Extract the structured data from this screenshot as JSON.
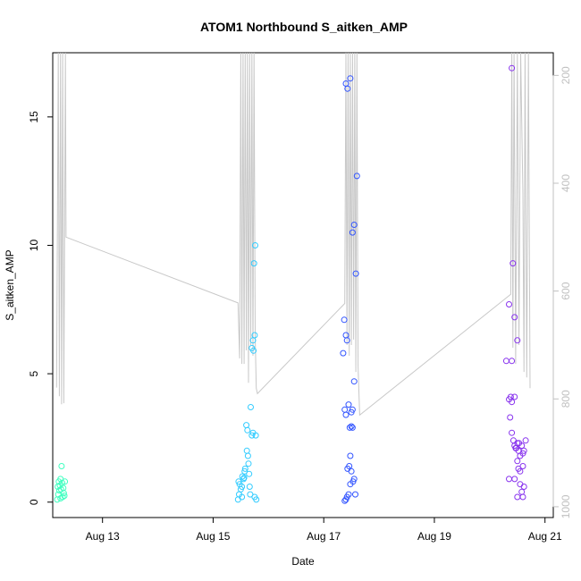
{
  "chart_data": {
    "type": "scatter",
    "title": "ATOM1 Northbound S_aitken_AMP",
    "xlabel": "Date",
    "ylabel": "S_aitken_AMP",
    "xlim": [
      12.1,
      21.15
    ],
    "ylim": [
      -0.6,
      17.5
    ],
    "x_ticks": [
      {
        "value": 13,
        "label": "Aug 13"
      },
      {
        "value": 15,
        "label": "Aug 15"
      },
      {
        "value": 17,
        "label": "Aug 17"
      },
      {
        "value": 19,
        "label": "Aug 19"
      },
      {
        "value": 21,
        "label": "Aug 21"
      }
    ],
    "y_ticks": [
      0,
      5,
      10,
      15
    ],
    "secondary_axis": {
      "position": "right",
      "color": "#c0c0c0",
      "range": [
        158,
        1020
      ],
      "ticks": [
        200,
        400,
        600,
        800,
        1000
      ]
    },
    "grid": false,
    "legend": "none",
    "series": [
      {
        "color": "#40ffc0",
        "points": [
          [
            12.18,
            0.1
          ],
          [
            12.2,
            0.3
          ],
          [
            12.19,
            0.6
          ],
          [
            12.22,
            0.45
          ],
          [
            12.21,
            0.8
          ],
          [
            12.24,
            0.9
          ],
          [
            12.25,
            0.5
          ],
          [
            12.23,
            0.65
          ],
          [
            12.26,
            1.4
          ],
          [
            12.27,
            0.75
          ],
          [
            12.28,
            0.2
          ],
          [
            12.29,
            0.55
          ],
          [
            12.3,
            0.35
          ],
          [
            12.32,
            0.8
          ],
          [
            12.31,
            0.25
          ],
          [
            12.24,
            0.15
          ]
        ]
      },
      {
        "color": "#33ccff",
        "points": [
          [
            15.45,
            0.1
          ],
          [
            15.47,
            0.3
          ],
          [
            15.46,
            0.8
          ],
          [
            15.5,
            0.5
          ],
          [
            15.48,
            0.7
          ],
          [
            15.52,
            0.6
          ],
          [
            15.55,
            0.9
          ],
          [
            15.53,
            1.0
          ],
          [
            15.57,
            1.2
          ],
          [
            15.58,
            1.3
          ],
          [
            15.6,
            3.0
          ],
          [
            15.62,
            2.8
          ],
          [
            15.61,
            2.0
          ],
          [
            15.63,
            1.8
          ],
          [
            15.64,
            1.5
          ],
          [
            15.65,
            1.1
          ],
          [
            15.66,
            0.6
          ],
          [
            15.67,
            0.3
          ],
          [
            15.68,
            3.7
          ],
          [
            15.7,
            2.6
          ],
          [
            15.72,
            2.7
          ],
          [
            15.7,
            6.0
          ],
          [
            15.72,
            6.3
          ],
          [
            15.73,
            5.9
          ],
          [
            15.75,
            6.5
          ],
          [
            15.74,
            9.3
          ],
          [
            15.76,
            10.0
          ],
          [
            15.77,
            2.6
          ],
          [
            15.78,
            0.1
          ],
          [
            15.75,
            0.2
          ],
          [
            15.52,
            0.2
          ],
          [
            15.56,
            0.95
          ]
        ]
      },
      {
        "color": "#3355ff",
        "points": [
          [
            17.35,
            5.8
          ],
          [
            17.37,
            7.1
          ],
          [
            17.4,
            6.5
          ],
          [
            17.42,
            6.3
          ],
          [
            17.38,
            3.6
          ],
          [
            17.4,
            3.4
          ],
          [
            17.45,
            3.8
          ],
          [
            17.47,
            2.9
          ],
          [
            17.5,
            3.5
          ],
          [
            17.52,
            3.6
          ],
          [
            17.55,
            4.7
          ],
          [
            17.43,
            1.3
          ],
          [
            17.46,
            1.4
          ],
          [
            17.48,
            1.8
          ],
          [
            17.5,
            1.2
          ],
          [
            17.53,
            0.8
          ],
          [
            17.55,
            0.9
          ],
          [
            17.57,
            0.3
          ],
          [
            17.4,
            0.1
          ],
          [
            17.42,
            0.2
          ],
          [
            17.45,
            0.3
          ],
          [
            17.38,
            0.05
          ],
          [
            17.48,
            0.7
          ],
          [
            17.4,
            16.3
          ],
          [
            17.43,
            16.1
          ],
          [
            17.48,
            16.5
          ],
          [
            17.52,
            10.5
          ],
          [
            17.55,
            10.8
          ],
          [
            17.6,
            12.7
          ],
          [
            17.58,
            8.9
          ],
          [
            17.5,
            2.95
          ],
          [
            17.52,
            2.9
          ]
        ]
      },
      {
        "color": "#8833ee",
        "points": [
          [
            20.4,
            16.9
          ],
          [
            20.42,
            9.3
          ],
          [
            20.35,
            7.7
          ],
          [
            20.45,
            7.2
          ],
          [
            20.5,
            6.3
          ],
          [
            20.3,
            5.5
          ],
          [
            20.4,
            5.5
          ],
          [
            20.35,
            4.0
          ],
          [
            20.38,
            4.1
          ],
          [
            20.4,
            3.9
          ],
          [
            20.45,
            4.1
          ],
          [
            20.37,
            3.3
          ],
          [
            20.4,
            2.7
          ],
          [
            20.43,
            2.4
          ],
          [
            20.45,
            2.2
          ],
          [
            20.48,
            2.1
          ],
          [
            20.5,
            2.3
          ],
          [
            20.52,
            2.0
          ],
          [
            20.55,
            1.8
          ],
          [
            20.58,
            2.2
          ],
          [
            20.6,
            1.9
          ],
          [
            20.62,
            2.0
          ],
          [
            20.65,
            2.4
          ],
          [
            20.5,
            1.6
          ],
          [
            20.52,
            1.3
          ],
          [
            20.55,
            1.2
          ],
          [
            20.6,
            1.4
          ],
          [
            20.45,
            0.9
          ],
          [
            20.35,
            0.9
          ],
          [
            20.55,
            0.7
          ],
          [
            20.58,
            0.4
          ],
          [
            20.6,
            0.2
          ],
          [
            20.62,
            0.6
          ],
          [
            20.5,
            0.2
          ],
          [
            20.47,
            2.1
          ],
          [
            20.53,
            2.3
          ]
        ]
      }
    ],
    "overlay_line": {
      "color": "#c8c8c8",
      "scale": "secondary",
      "points": [
        [
          12.17,
          779
        ],
        [
          12.2,
          158
        ],
        [
          12.22,
          795
        ],
        [
          12.24,
          158
        ],
        [
          12.26,
          810
        ],
        [
          12.28,
          158
        ],
        [
          12.3,
          808
        ],
        [
          12.33,
          158
        ],
        [
          12.34,
          500
        ],
        [
          15.45,
          622
        ],
        [
          15.48,
          725
        ],
        [
          15.5,
          158
        ],
        [
          15.52,
          735
        ],
        [
          15.54,
          158
        ],
        [
          15.56,
          735
        ],
        [
          15.58,
          158
        ],
        [
          15.6,
          710
        ],
        [
          15.62,
          158
        ],
        [
          15.64,
          770
        ],
        [
          15.66,
          158
        ],
        [
          15.68,
          700
        ],
        [
          15.7,
          158
        ],
        [
          15.72,
          720
        ],
        [
          15.74,
          158
        ],
        [
          15.76,
          685
        ],
        [
          15.78,
          780
        ],
        [
          15.8,
          790
        ],
        [
          17.38,
          623
        ],
        [
          17.4,
          158
        ],
        [
          17.42,
          700
        ],
        [
          17.44,
          158
        ],
        [
          17.46,
          720
        ],
        [
          17.48,
          158
        ],
        [
          17.5,
          700
        ],
        [
          17.52,
          158
        ],
        [
          17.54,
          690
        ],
        [
          17.56,
          158
        ],
        [
          17.58,
          750
        ],
        [
          17.6,
          158
        ],
        [
          17.62,
          740
        ],
        [
          17.65,
          830
        ],
        [
          20.38,
          606
        ],
        [
          20.4,
          158
        ],
        [
          20.42,
          705
        ],
        [
          20.44,
          158
        ],
        [
          20.47,
          735
        ],
        [
          20.5,
          158
        ],
        [
          20.53,
          700
        ],
        [
          20.56,
          158
        ],
        [
          20.6,
          420
        ],
        [
          20.62,
          750
        ],
        [
          20.64,
          158
        ],
        [
          20.67,
          760
        ],
        [
          20.7,
          158
        ],
        [
          20.73,
          780
        ]
      ]
    }
  }
}
